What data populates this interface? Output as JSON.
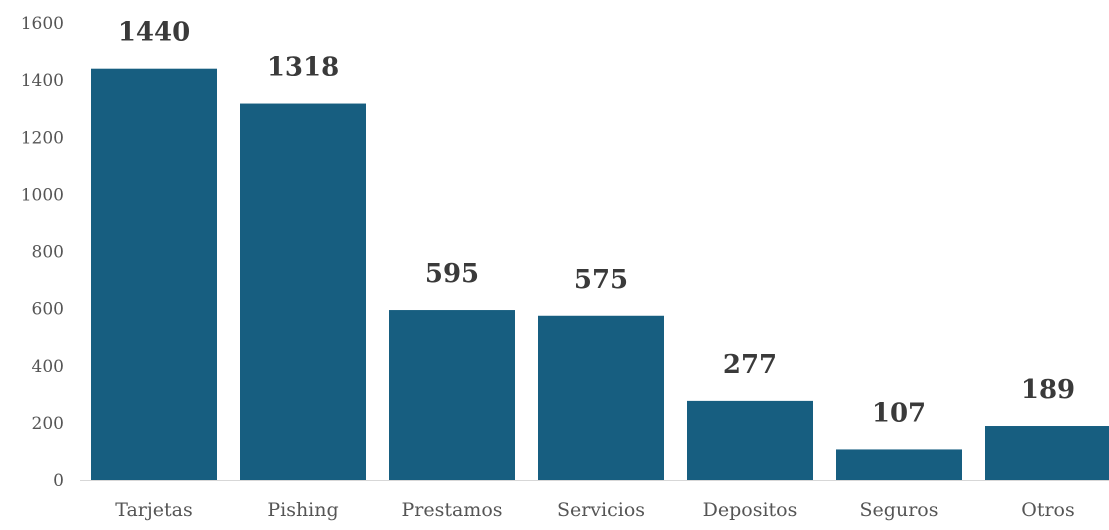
{
  "chart_data": {
    "type": "bar",
    "title": "",
    "xlabel": "",
    "ylabel": "",
    "categories": [
      "Tarjetas",
      "Pishing",
      "Prestamos",
      "Servicios",
      "Depositos",
      "Seguros",
      "Otros"
    ],
    "values": [
      1440,
      1318,
      595,
      575,
      277,
      107,
      189
    ],
    "ylim": [
      0,
      1600
    ],
    "yticks": [
      0,
      200,
      400,
      600,
      800,
      1000,
      1200,
      1400,
      1600
    ],
    "grid": false,
    "data_labels": true,
    "legend": "none",
    "bar_color": "#175e80"
  }
}
